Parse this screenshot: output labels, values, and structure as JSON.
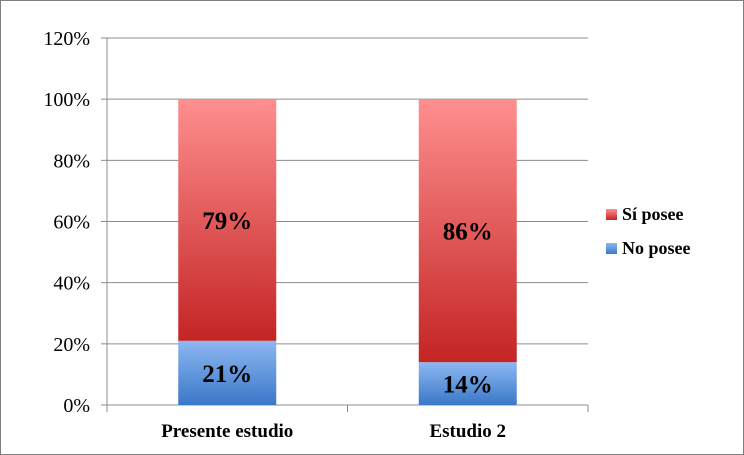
{
  "chart_data": {
    "type": "bar",
    "stacked": true,
    "categories": [
      "Presente estudio",
      "Estudio 2"
    ],
    "series": [
      {
        "name": "No posee",
        "values": [
          21,
          14
        ],
        "labels": [
          "21%",
          "14%"
        ],
        "color_top": "#8db8f2",
        "color_bottom": "#3a78c8"
      },
      {
        "name": "Sí posee",
        "values": [
          79,
          86
        ],
        "labels": [
          "79%",
          "86%"
        ],
        "color_top": "#ff8f8f",
        "color_bottom": "#c42424"
      }
    ],
    "y_ticks": [
      "0%",
      "20%",
      "40%",
      "60%",
      "80%",
      "100%",
      "120%"
    ],
    "ylim": [
      0,
      120
    ],
    "grid": true,
    "legend_position": "right",
    "legend_order": [
      "Sí posee",
      "No posee"
    ],
    "title": "",
    "xlabel": "",
    "ylabel": ""
  }
}
